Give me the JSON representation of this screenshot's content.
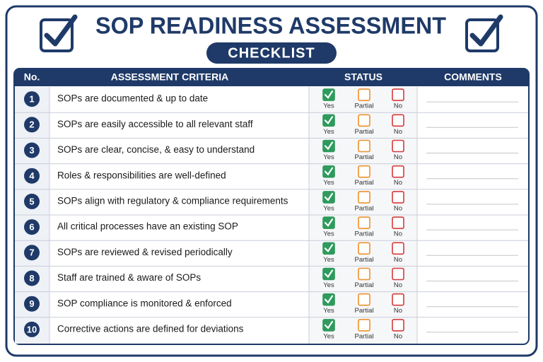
{
  "header": {
    "title": "SOP READINESS ASSESSMENT",
    "subtitle": "CHECKLIST"
  },
  "table": {
    "columns": [
      "No.",
      "ASSESSMENT CRITERIA",
      "STATUS",
      "COMMENTS"
    ],
    "status_options": [
      "Yes",
      "Partial",
      "No"
    ],
    "rows": [
      {
        "no": "1",
        "criteria": "SOPs are documented & up to date",
        "selected": "Yes"
      },
      {
        "no": "2",
        "criteria": "SOPs are easily accessible to all relevant staff",
        "selected": "Yes"
      },
      {
        "no": "3",
        "criteria": "SOPs are clear, concise, & easy to understand",
        "selected": "Yes"
      },
      {
        "no": "4",
        "criteria": "Roles & responsibilities are well-defined",
        "selected": "Yes"
      },
      {
        "no": "5",
        "criteria": "SOPs align with regulatory & compliance requirements",
        "selected": "Yes"
      },
      {
        "no": "6",
        "criteria": "All critical processes have an existing SOP",
        "selected": "Yes"
      },
      {
        "no": "7",
        "criteria": "SOPs are reviewed & revised periodically",
        "selected": "Yes"
      },
      {
        "no": "8",
        "criteria": "Staff are trained & aware of SOPs",
        "selected": "Yes"
      },
      {
        "no": "9",
        "criteria": "SOP compliance is monitored & enforced",
        "selected": "Yes"
      },
      {
        "no": "10",
        "criteria": "Corrective actions are defined for deviations",
        "selected": "Yes"
      }
    ]
  }
}
